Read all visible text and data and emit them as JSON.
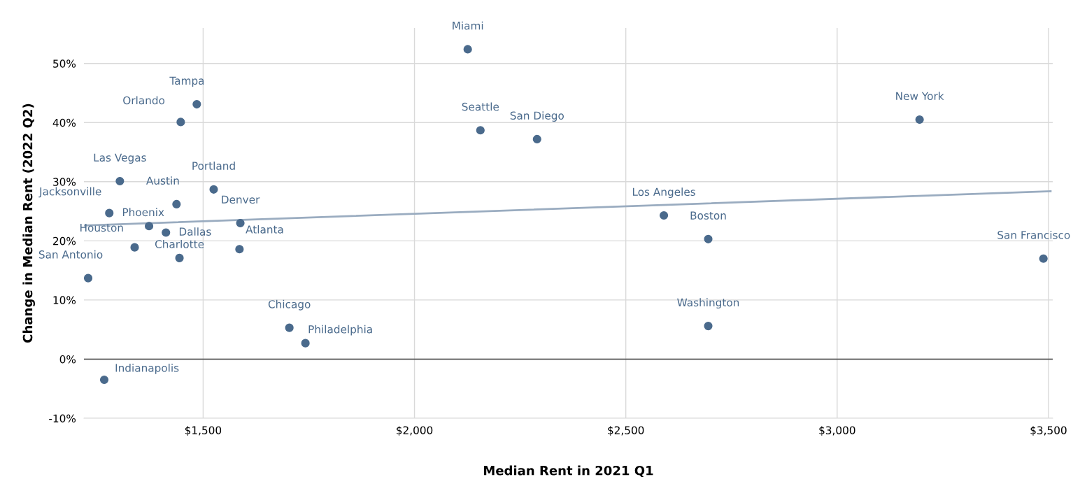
{
  "chart_data": {
    "type": "scatter",
    "xlabel": "Median Rent in 2021 Q1",
    "ylabel": "Change in Median Rent (2022 Q2)",
    "series": [
      {
        "type": "scatter",
        "marker": "circle",
        "color": "#4a6a8c",
        "x": [
          2126,
          1485,
          1447,
          2156,
          2290,
          3195,
          1303,
          1525,
          1437,
          1278,
          1372,
          1412,
          1588,
          1338,
          1444,
          1586,
          1228,
          2590,
          2695,
          3488,
          2695,
          1704,
          1742,
          1266
        ],
        "values": [
          52.4,
          43.1,
          40.1,
          38.7,
          37.2,
          40.5,
          30.1,
          28.7,
          26.2,
          24.7,
          22.5,
          21.4,
          23.0,
          18.9,
          17.1,
          18.6,
          13.7,
          24.3,
          20.3,
          17.0,
          5.6,
          5.3,
          2.7,
          -3.5
        ]
      },
      {
        "type": "line",
        "color": "#9aacc0",
        "x": [
          1218,
          3505
        ],
        "values": [
          22.6,
          28.4
        ]
      }
    ],
    "annotations": [
      {
        "text": "Miami",
        "x": 2126,
        "y": 52.4
      },
      {
        "text": "Tampa",
        "x": 1485,
        "y": 43.1
      },
      {
        "text": "Orlando",
        "x": 1447,
        "y": 40.1
      },
      {
        "text": "Seattle",
        "x": 2156,
        "y": 38.7
      },
      {
        "text": "San Diego",
        "x": 2290,
        "y": 37.2
      },
      {
        "text": "New York",
        "x": 3195,
        "y": 40.5
      },
      {
        "text": "Las Vegas",
        "x": 1303,
        "y": 30.1
      },
      {
        "text": "Portland",
        "x": 1525,
        "y": 28.7
      },
      {
        "text": "Austin",
        "x": 1437,
        "y": 26.2
      },
      {
        "text": "Jacksonville",
        "x": 1278,
        "y": 24.7
      },
      {
        "text": "Phoenix",
        "x": 1372,
        "y": 22.5
      },
      {
        "text": "Dallas",
        "x": 1412,
        "y": 21.4
      },
      {
        "text": "Denver",
        "x": 1588,
        "y": 23.0
      },
      {
        "text": "Houston",
        "x": 1338,
        "y": 18.9
      },
      {
        "text": "Charlotte",
        "x": 1444,
        "y": 17.1
      },
      {
        "text": "Atlanta",
        "x": 1586,
        "y": 18.6
      },
      {
        "text": "San Antonio",
        "x": 1228,
        "y": 13.7
      },
      {
        "text": "Los Angeles",
        "x": 2590,
        "y": 24.3
      },
      {
        "text": "Boston",
        "x": 2695,
        "y": 20.3
      },
      {
        "text": "San Francisco",
        "x": 3488,
        "y": 17.0
      },
      {
        "text": "Washington",
        "x": 2695,
        "y": 5.6
      },
      {
        "text": "Chicago",
        "x": 1704,
        "y": 5.3
      },
      {
        "text": "Philadelphia",
        "x": 1742,
        "y": 2.7
      },
      {
        "text": "Indianapolis",
        "x": 1266,
        "y": -3.5
      }
    ],
    "xlim": [
      1218,
      3510
    ],
    "ylim": [
      -10,
      56
    ],
    "xticks": [
      {
        "value": 1500,
        "label": "$1,500"
      },
      {
        "value": 2000,
        "label": "$2,000"
      },
      {
        "value": 2500,
        "label": "$2,500"
      },
      {
        "value": 3000,
        "label": "$3,000"
      },
      {
        "value": 3500,
        "label": "$3,500"
      }
    ],
    "yticks": [
      {
        "value": -10,
        "label": "-10%"
      },
      {
        "value": 0,
        "label": "0%"
      },
      {
        "value": 10,
        "label": "10%"
      },
      {
        "value": 20,
        "label": "20%"
      },
      {
        "value": 30,
        "label": "30%"
      },
      {
        "value": 40,
        "label": "40%"
      },
      {
        "value": 50,
        "label": "50%"
      }
    ],
    "ref_lines": [
      {
        "axis": "y",
        "value": 0,
        "color": "#404040"
      }
    ],
    "grid": true,
    "legend": false
  }
}
